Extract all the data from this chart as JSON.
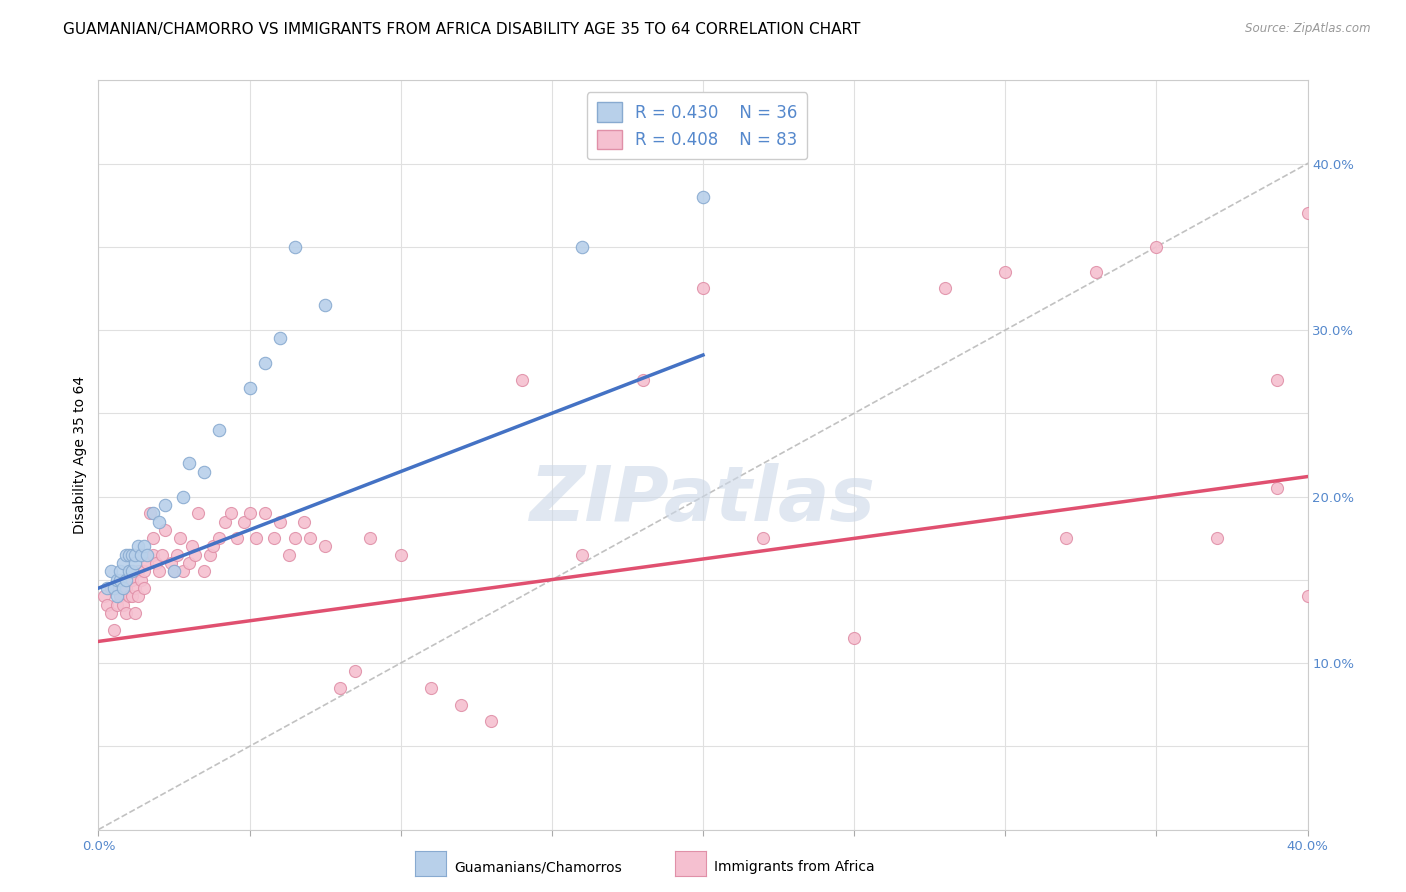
{
  "title": "GUAMANIAN/CHAMORRO VS IMMIGRANTS FROM AFRICA DISABILITY AGE 35 TO 64 CORRELATION CHART",
  "source": "Source: ZipAtlas.com",
  "ylabel_left": "Disability Age 35 to 64",
  "xlim": [
    0.0,
    0.4
  ],
  "ylim": [
    0.0,
    0.45
  ],
  "watermark": "ZIPatlas",
  "series": [
    {
      "name": "Guamanians/Chamorros",
      "R": 0.43,
      "N": 36,
      "color": "#b8d0ea",
      "edge_color": "#88aad0",
      "line_color": "#4472c4",
      "x": [
        0.003,
        0.004,
        0.005,
        0.006,
        0.006,
        0.007,
        0.007,
        0.008,
        0.008,
        0.009,
        0.009,
        0.01,
        0.01,
        0.011,
        0.011,
        0.012,
        0.012,
        0.013,
        0.014,
        0.015,
        0.016,
        0.018,
        0.02,
        0.022,
        0.025,
        0.028,
        0.03,
        0.035,
        0.04,
        0.05,
        0.055,
        0.06,
        0.065,
        0.075,
        0.16,
        0.2
      ],
      "y": [
        0.145,
        0.155,
        0.145,
        0.14,
        0.15,
        0.15,
        0.155,
        0.145,
        0.16,
        0.15,
        0.165,
        0.155,
        0.165,
        0.155,
        0.165,
        0.16,
        0.165,
        0.17,
        0.165,
        0.17,
        0.165,
        0.19,
        0.185,
        0.195,
        0.155,
        0.2,
        0.22,
        0.215,
        0.24,
        0.265,
        0.28,
        0.295,
        0.35,
        0.315,
        0.35,
        0.38
      ],
      "trend_x": [
        0.0,
        0.2
      ],
      "trend_y": [
        0.145,
        0.285
      ]
    },
    {
      "name": "Immigrants from Africa",
      "R": 0.408,
      "N": 83,
      "color": "#f5c0d0",
      "edge_color": "#e090a8",
      "line_color": "#e05070",
      "x": [
        0.002,
        0.003,
        0.004,
        0.004,
        0.005,
        0.005,
        0.006,
        0.006,
        0.007,
        0.007,
        0.008,
        0.008,
        0.009,
        0.009,
        0.01,
        0.01,
        0.011,
        0.011,
        0.012,
        0.012,
        0.013,
        0.013,
        0.014,
        0.015,
        0.015,
        0.016,
        0.017,
        0.018,
        0.018,
        0.019,
        0.02,
        0.021,
        0.022,
        0.024,
        0.025,
        0.026,
        0.027,
        0.028,
        0.03,
        0.031,
        0.032,
        0.033,
        0.035,
        0.037,
        0.038,
        0.04,
        0.042,
        0.044,
        0.046,
        0.048,
        0.05,
        0.052,
        0.055,
        0.058,
        0.06,
        0.063,
        0.065,
        0.068,
        0.07,
        0.075,
        0.08,
        0.085,
        0.09,
        0.1,
        0.11,
        0.12,
        0.13,
        0.14,
        0.16,
        0.18,
        0.2,
        0.22,
        0.25,
        0.28,
        0.3,
        0.32,
        0.33,
        0.35,
        0.37,
        0.39,
        0.39,
        0.4,
        0.4
      ],
      "y": [
        0.14,
        0.135,
        0.13,
        0.145,
        0.12,
        0.145,
        0.135,
        0.145,
        0.14,
        0.15,
        0.135,
        0.145,
        0.13,
        0.145,
        0.14,
        0.15,
        0.14,
        0.15,
        0.13,
        0.145,
        0.155,
        0.14,
        0.15,
        0.145,
        0.155,
        0.16,
        0.19,
        0.165,
        0.175,
        0.16,
        0.155,
        0.165,
        0.18,
        0.16,
        0.155,
        0.165,
        0.175,
        0.155,
        0.16,
        0.17,
        0.165,
        0.19,
        0.155,
        0.165,
        0.17,
        0.175,
        0.185,
        0.19,
        0.175,
        0.185,
        0.19,
        0.175,
        0.19,
        0.175,
        0.185,
        0.165,
        0.175,
        0.185,
        0.175,
        0.17,
        0.085,
        0.095,
        0.175,
        0.165,
        0.085,
        0.075,
        0.065,
        0.27,
        0.165,
        0.27,
        0.325,
        0.175,
        0.115,
        0.325,
        0.335,
        0.175,
        0.335,
        0.35,
        0.175,
        0.205,
        0.27,
        0.37,
        0.14
      ],
      "trend_x": [
        0.0,
        0.4
      ],
      "trend_y": [
        0.113,
        0.212
      ]
    }
  ],
  "diagonal_dashed": {
    "color": "#bbbbbb",
    "style": "dashed"
  },
  "background_color": "#ffffff",
  "grid_color": "#e0e0e0",
  "title_fontsize": 11,
  "axis_label_fontsize": 10,
  "tick_fontsize": 9.5,
  "watermark_color": "#ccd8e8",
  "watermark_fontsize": 55
}
